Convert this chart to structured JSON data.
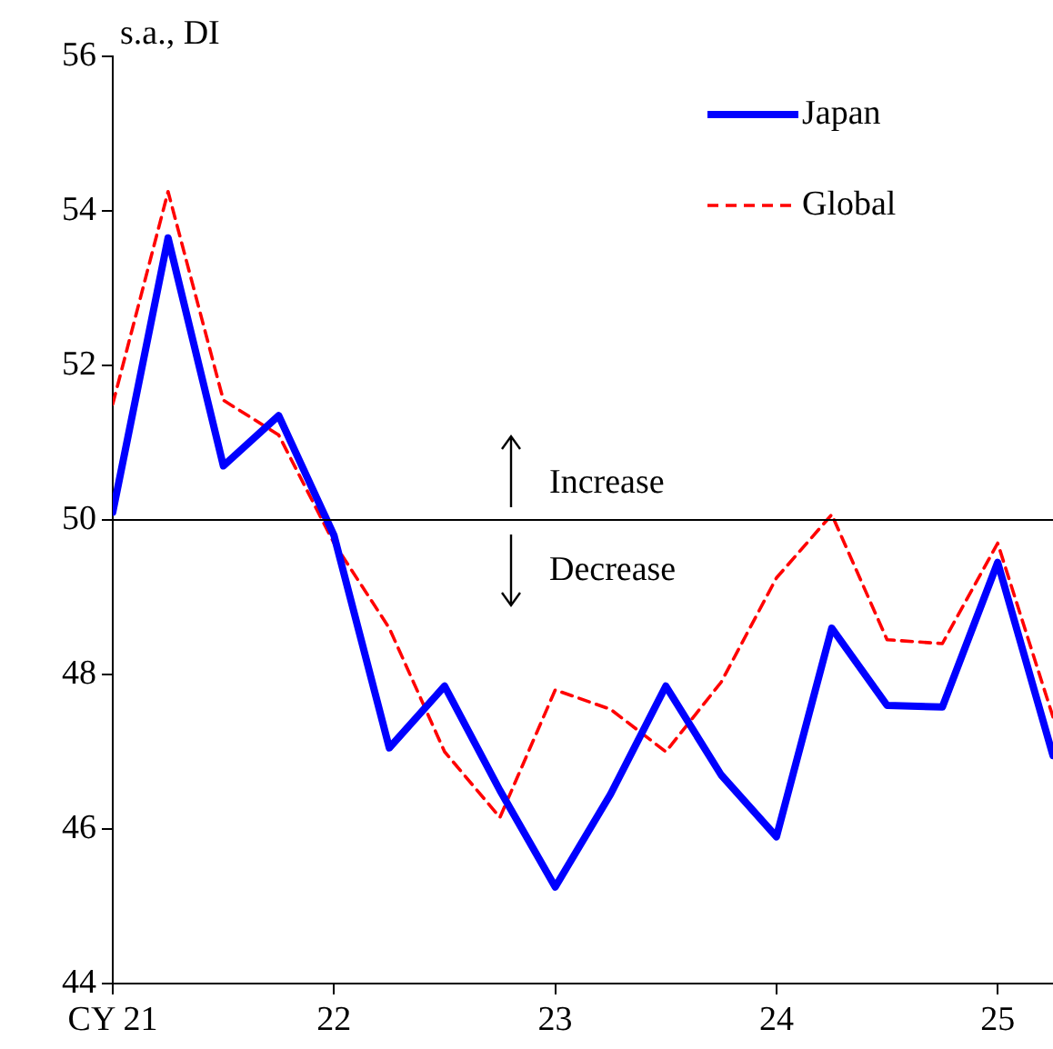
{
  "chart_data": {
    "type": "line",
    "ylabel": "s.a., DI",
    "x": [
      21,
      21.25,
      21.5,
      21.75,
      22,
      22.25,
      22.5,
      22.75,
      23,
      23.25,
      23.5,
      23.75,
      24,
      24.25,
      24.5,
      24.75,
      25,
      25.25
    ],
    "series": [
      {
        "name": "Japan",
        "color": "#0000ff",
        "line_style": "solid",
        "values": [
          50.1,
          53.65,
          50.7,
          51.35,
          49.8,
          47.05,
          47.85,
          46.5,
          45.25,
          46.45,
          47.85,
          46.7,
          45.9,
          48.6,
          47.6,
          47.58,
          49.45,
          46.95
        ]
      },
      {
        "name": "Global",
        "color": "#ff0000",
        "line_style": "dashed",
        "values": [
          51.5,
          54.25,
          51.55,
          51.1,
          49.7,
          48.6,
          47.0,
          46.15,
          47.8,
          47.55,
          47.0,
          47.9,
          49.25,
          50.07,
          48.45,
          48.4,
          49.7,
          47.45
        ]
      }
    ],
    "xlim": [
      21,
      25.25
    ],
    "xticks": [
      {
        "value": 21,
        "label": "CY 21"
      },
      {
        "value": 22,
        "label": "22"
      },
      {
        "value": 23,
        "label": "23"
      },
      {
        "value": 24,
        "label": "24"
      },
      {
        "value": 25,
        "label": "25"
      }
    ],
    "ylim": [
      44,
      56
    ],
    "yticks": [
      44,
      46,
      48,
      50,
      52,
      54,
      56
    ],
    "ref_lines": [
      {
        "axis": "y",
        "value": 50,
        "color": "#000000"
      }
    ],
    "annotations": [
      "Increase",
      "Decrease"
    ],
    "grid": false,
    "legend": "top right",
    "marker": "none"
  }
}
